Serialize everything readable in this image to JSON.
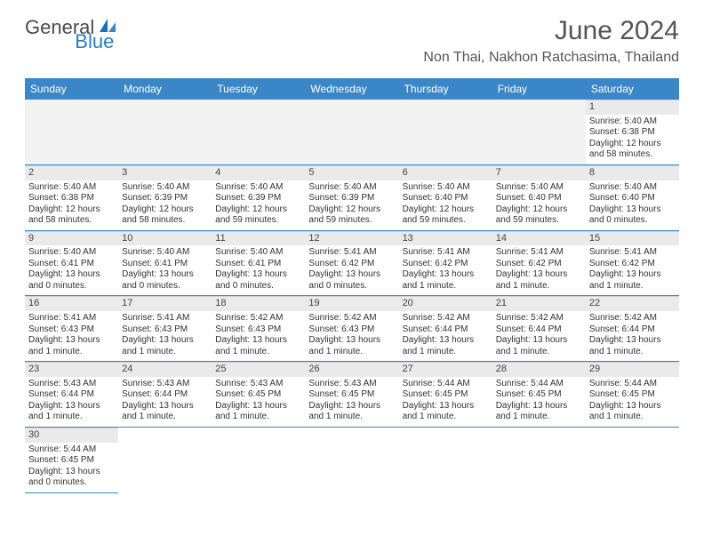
{
  "logo": {
    "general": "General",
    "blue": "Blue"
  },
  "title": "June 2024",
  "location": "Non Thai, Nakhon Ratchasima, Thailand",
  "colors": {
    "header_bg": "#3b86c7",
    "header_text": "#ffffff",
    "daynum_bg": "#eaeaea",
    "row_border": "#3b86c7",
    "body_text": "#333333",
    "title_text": "#555555"
  },
  "dayHeaders": [
    "Sunday",
    "Monday",
    "Tuesday",
    "Wednesday",
    "Thursday",
    "Friday",
    "Saturday"
  ],
  "startOffset": 6,
  "daysInMonth": 30,
  "days": [
    {
      "n": 1,
      "sunrise": "5:40 AM",
      "sunset": "6:38 PM",
      "daylight": "12 hours and 58 minutes."
    },
    {
      "n": 2,
      "sunrise": "5:40 AM",
      "sunset": "6:38 PM",
      "daylight": "12 hours and 58 minutes."
    },
    {
      "n": 3,
      "sunrise": "5:40 AM",
      "sunset": "6:39 PM",
      "daylight": "12 hours and 58 minutes."
    },
    {
      "n": 4,
      "sunrise": "5:40 AM",
      "sunset": "6:39 PM",
      "daylight": "12 hours and 59 minutes."
    },
    {
      "n": 5,
      "sunrise": "5:40 AM",
      "sunset": "6:39 PM",
      "daylight": "12 hours and 59 minutes."
    },
    {
      "n": 6,
      "sunrise": "5:40 AM",
      "sunset": "6:40 PM",
      "daylight": "12 hours and 59 minutes."
    },
    {
      "n": 7,
      "sunrise": "5:40 AM",
      "sunset": "6:40 PM",
      "daylight": "12 hours and 59 minutes."
    },
    {
      "n": 8,
      "sunrise": "5:40 AM",
      "sunset": "6:40 PM",
      "daylight": "13 hours and 0 minutes."
    },
    {
      "n": 9,
      "sunrise": "5:40 AM",
      "sunset": "6:41 PM",
      "daylight": "13 hours and 0 minutes."
    },
    {
      "n": 10,
      "sunrise": "5:40 AM",
      "sunset": "6:41 PM",
      "daylight": "13 hours and 0 minutes."
    },
    {
      "n": 11,
      "sunrise": "5:40 AM",
      "sunset": "6:41 PM",
      "daylight": "13 hours and 0 minutes."
    },
    {
      "n": 12,
      "sunrise": "5:41 AM",
      "sunset": "6:42 PM",
      "daylight": "13 hours and 0 minutes."
    },
    {
      "n": 13,
      "sunrise": "5:41 AM",
      "sunset": "6:42 PM",
      "daylight": "13 hours and 1 minute."
    },
    {
      "n": 14,
      "sunrise": "5:41 AM",
      "sunset": "6:42 PM",
      "daylight": "13 hours and 1 minute."
    },
    {
      "n": 15,
      "sunrise": "5:41 AM",
      "sunset": "6:42 PM",
      "daylight": "13 hours and 1 minute."
    },
    {
      "n": 16,
      "sunrise": "5:41 AM",
      "sunset": "6:43 PM",
      "daylight": "13 hours and 1 minute."
    },
    {
      "n": 17,
      "sunrise": "5:41 AM",
      "sunset": "6:43 PM",
      "daylight": "13 hours and 1 minute."
    },
    {
      "n": 18,
      "sunrise": "5:42 AM",
      "sunset": "6:43 PM",
      "daylight": "13 hours and 1 minute."
    },
    {
      "n": 19,
      "sunrise": "5:42 AM",
      "sunset": "6:43 PM",
      "daylight": "13 hours and 1 minute."
    },
    {
      "n": 20,
      "sunrise": "5:42 AM",
      "sunset": "6:44 PM",
      "daylight": "13 hours and 1 minute."
    },
    {
      "n": 21,
      "sunrise": "5:42 AM",
      "sunset": "6:44 PM",
      "daylight": "13 hours and 1 minute."
    },
    {
      "n": 22,
      "sunrise": "5:42 AM",
      "sunset": "6:44 PM",
      "daylight": "13 hours and 1 minute."
    },
    {
      "n": 23,
      "sunrise": "5:43 AM",
      "sunset": "6:44 PM",
      "daylight": "13 hours and 1 minute."
    },
    {
      "n": 24,
      "sunrise": "5:43 AM",
      "sunset": "6:44 PM",
      "daylight": "13 hours and 1 minute."
    },
    {
      "n": 25,
      "sunrise": "5:43 AM",
      "sunset": "6:45 PM",
      "daylight": "13 hours and 1 minute."
    },
    {
      "n": 26,
      "sunrise": "5:43 AM",
      "sunset": "6:45 PM",
      "daylight": "13 hours and 1 minute."
    },
    {
      "n": 27,
      "sunrise": "5:44 AM",
      "sunset": "6:45 PM",
      "daylight": "13 hours and 1 minute."
    },
    {
      "n": 28,
      "sunrise": "5:44 AM",
      "sunset": "6:45 PM",
      "daylight": "13 hours and 1 minute."
    },
    {
      "n": 29,
      "sunrise": "5:44 AM",
      "sunset": "6:45 PM",
      "daylight": "13 hours and 1 minute."
    },
    {
      "n": 30,
      "sunrise": "5:44 AM",
      "sunset": "6:45 PM",
      "daylight": "13 hours and 0 minutes."
    }
  ],
  "labels": {
    "sunrise": "Sunrise:",
    "sunset": "Sunset:",
    "daylight": "Daylight:"
  }
}
